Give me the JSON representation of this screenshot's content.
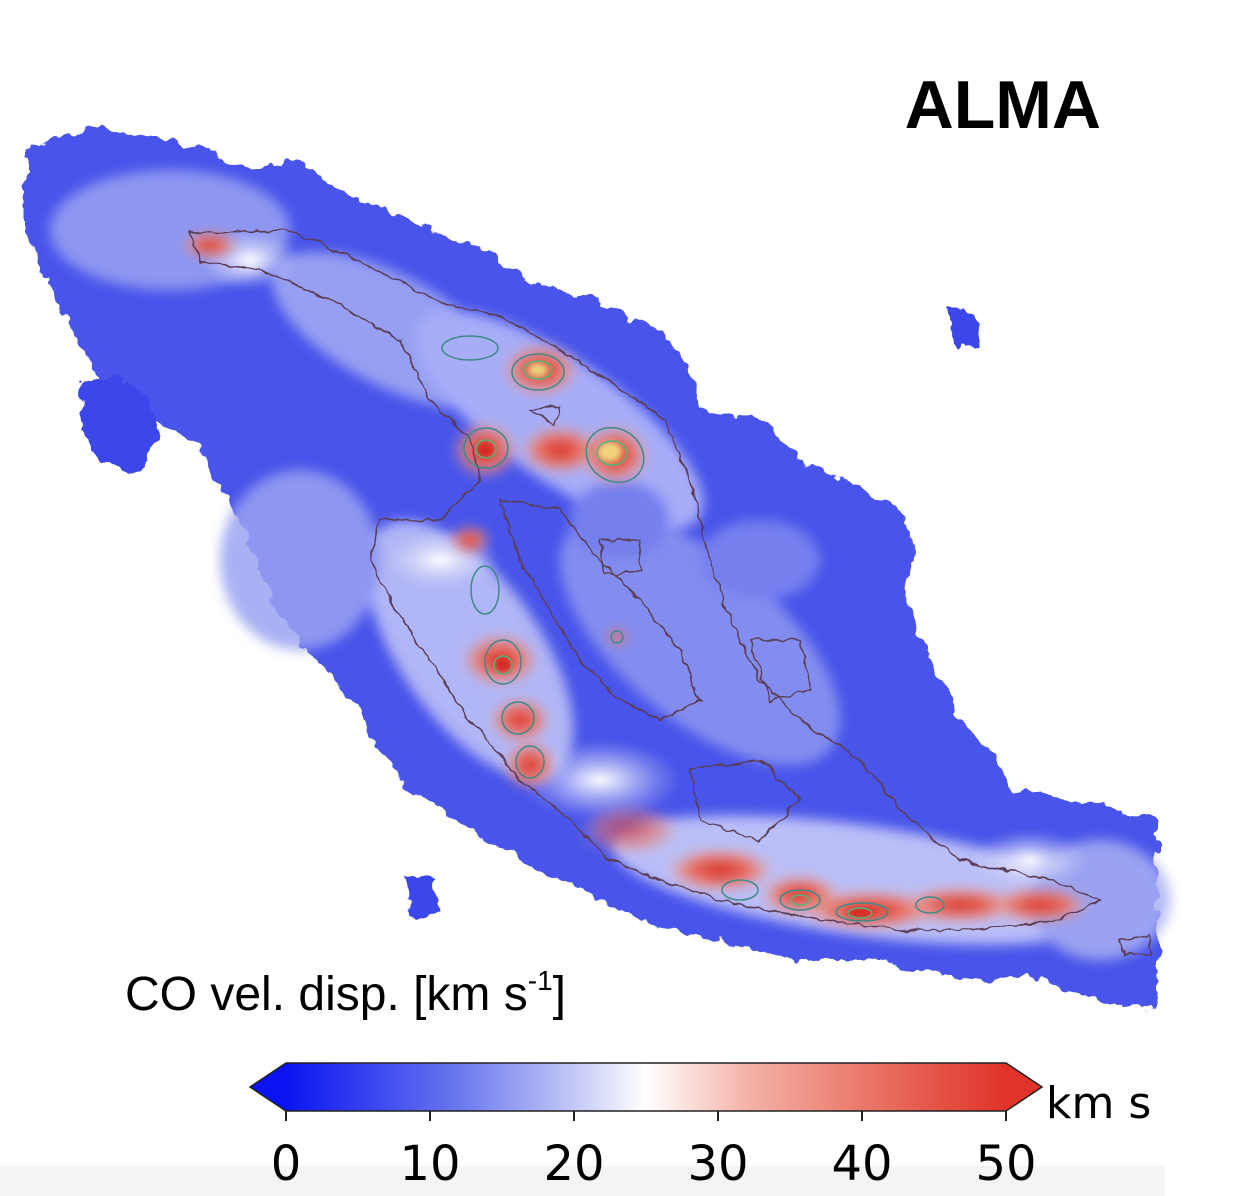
{
  "title": "ALMA",
  "chart_data": {
    "type": "heatmap",
    "title": "ALMA",
    "colorbar_label_main": "CO vel. disp.  [km s",
    "colorbar_label_sup": "-1",
    "colorbar_label_close": "]",
    "colorbar_unit": "km s",
    "range": [
      0,
      50
    ],
    "ticks": [
      0,
      10,
      20,
      30,
      40,
      50
    ],
    "tick_labels": [
      "0",
      "10",
      "20",
      "30",
      "40",
      "50"
    ],
    "extend": "both",
    "colormap": {
      "stops": [
        {
          "value": 0,
          "color": "#0a14f0"
        },
        {
          "value": 12,
          "color": "#6a78ef"
        },
        {
          "value": 20,
          "color": "#c3c8f6"
        },
        {
          "value": 25,
          "color": "#ffffff"
        },
        {
          "value": 32,
          "color": "#f4b3a8"
        },
        {
          "value": 42,
          "color": "#e86a5c"
        },
        {
          "value": 50,
          "color": "#e0332a"
        }
      ]
    },
    "contour_colors": [
      "#5a3c55",
      "#3f8a87",
      "#56b37a"
    ]
  }
}
